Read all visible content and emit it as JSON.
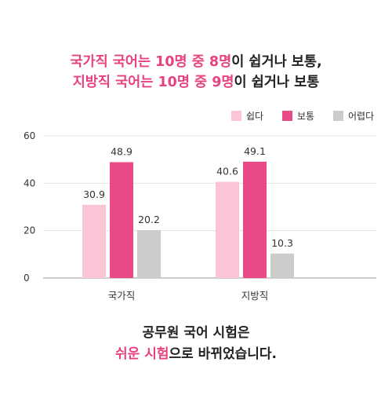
{
  "title": {
    "line1_pre": "국가직 국어는 10명 중 8명",
    "line1_post": "이 쉽거나 보통,",
    "line2_pre": "지방직 국어는 10명 중 9명",
    "line2_post": "이 쉽거나 보통"
  },
  "footer": {
    "line1": "공무원 국어 시험은",
    "line2_hl": "쉬운 시험",
    "line2_rest": "으로 바뀌었습니다."
  },
  "chart_data": {
    "type": "bar",
    "categories": [
      "국가직",
      "지방직"
    ],
    "series": [
      {
        "name": "쉽다",
        "values": [
          30.9,
          40.6
        ],
        "color": "#fcc4d7"
      },
      {
        "name": "보통",
        "values": [
          48.9,
          49.1
        ],
        "color": "#e84a87"
      },
      {
        "name": "어렵다",
        "values": [
          20.2,
          10.3
        ],
        "color": "#cccccc"
      }
    ],
    "yticks": [
      0,
      20,
      40,
      60
    ],
    "ylim": [
      0,
      60
    ],
    "grid": true,
    "legend": "top-right",
    "data_labels": true
  }
}
